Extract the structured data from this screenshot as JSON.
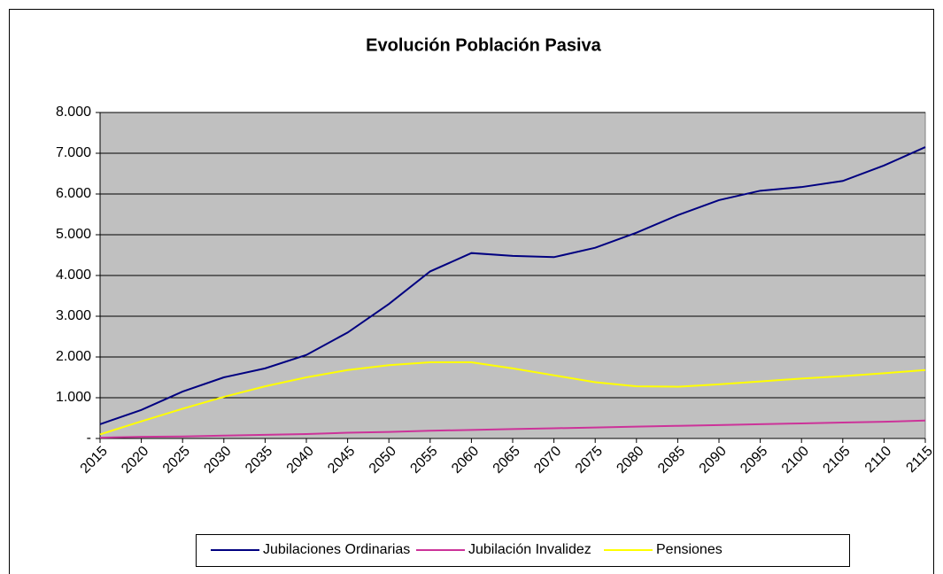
{
  "chart_data": {
    "type": "line",
    "title": "Evolución Población Pasiva",
    "x": [
      2015,
      2020,
      2025,
      2030,
      2035,
      2040,
      2045,
      2050,
      2055,
      2060,
      2065,
      2070,
      2075,
      2080,
      2085,
      2090,
      2095,
      2100,
      2105,
      2110,
      2115
    ],
    "series": [
      {
        "name": "Jubilaciones Ordinarias",
        "color": "#000080",
        "values": [
          350,
          700,
          1150,
          1500,
          1720,
          2050,
          2600,
          3300,
          4100,
          4550,
          4480,
          4450,
          4680,
          5050,
          5480,
          5850,
          6080,
          6170,
          6320,
          6700,
          7150
        ]
      },
      {
        "name": "Jubilación Invalidez",
        "color": "#cc3399",
        "values": [
          20,
          40,
          50,
          70,
          90,
          110,
          140,
          160,
          190,
          210,
          230,
          250,
          270,
          290,
          310,
          330,
          350,
          370,
          390,
          410,
          440
        ]
      },
      {
        "name": "Pensiones",
        "color": "#ffff00",
        "values": [
          100,
          420,
          730,
          1020,
          1280,
          1500,
          1680,
          1800,
          1870,
          1870,
          1720,
          1550,
          1380,
          1280,
          1270,
          1330,
          1400,
          1470,
          1530,
          1600,
          1680
        ]
      }
    ],
    "xlim": [
      2015,
      2115
    ],
    "xticks": [
      2015,
      2020,
      2025,
      2030,
      2035,
      2040,
      2045,
      2050,
      2055,
      2060,
      2065,
      2070,
      2075,
      2080,
      2085,
      2090,
      2095,
      2100,
      2105,
      2110,
      2115
    ],
    "ylim": [
      0,
      8000
    ],
    "yticks": [
      {
        "value": 0,
        "label": "-"
      },
      {
        "value": 1000,
        "label": "1.000"
      },
      {
        "value": 2000,
        "label": "2.000"
      },
      {
        "value": 3000,
        "label": "3.000"
      },
      {
        "value": 4000,
        "label": "4.000"
      },
      {
        "value": 5000,
        "label": "5.000"
      },
      {
        "value": 6000,
        "label": "6.000"
      },
      {
        "value": 7000,
        "label": "7.000"
      },
      {
        "value": 8000,
        "label": "8.000"
      }
    ],
    "grid": true,
    "legend": "bottom"
  }
}
